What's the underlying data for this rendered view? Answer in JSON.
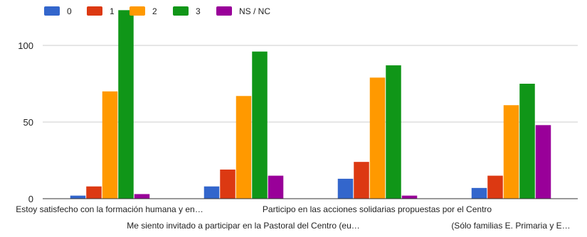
{
  "chart_data": {
    "type": "bar",
    "title": "",
    "xlabel": "",
    "ylabel": "",
    "ylim": [
      0,
      125
    ],
    "yticks": [
      0,
      50,
      100
    ],
    "grid": true,
    "legend_position": "top-left",
    "categories": [
      "Estoy satisfecho con la formación humana y en…",
      "Me siento invitado a participar en la Pastoral del Centro (eu…",
      "Participo en las acciones solidarias propuestas por el Centro",
      "(Sólo familias E. Primaria y E…"
    ],
    "series": [
      {
        "name": "0",
        "color": "#3366cc",
        "values": [
          2,
          8,
          13,
          7
        ]
      },
      {
        "name": "1",
        "color": "#dc3912",
        "values": [
          8,
          19,
          24,
          15
        ]
      },
      {
        "name": "2",
        "color": "#ff9900",
        "values": [
          70,
          67,
          79,
          61
        ]
      },
      {
        "name": "3",
        "color": "#109618",
        "values": [
          123,
          96,
          87,
          75
        ]
      },
      {
        "name": "NS / NC",
        "color": "#990099",
        "values": [
          3,
          15,
          2,
          48
        ]
      }
    ]
  }
}
